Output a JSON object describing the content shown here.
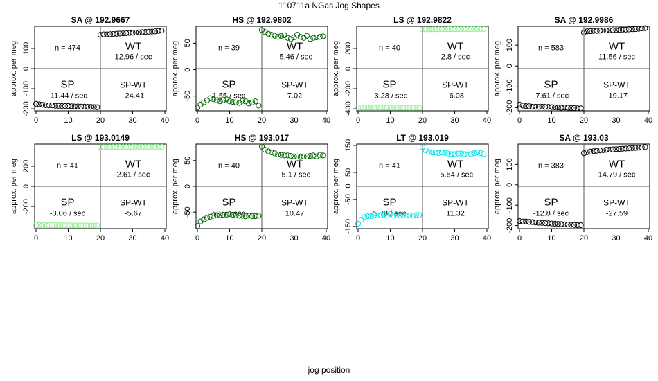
{
  "page": {
    "title": "110711a   NGas Jog Shapes",
    "xlabel": "jog position"
  },
  "chart_data": [
    {
      "type": "scatter",
      "title": "SA @ 192.9667",
      "ylabel": "approx. per meg",
      "xlim": [
        0,
        40
      ],
      "ylim": [
        -210,
        210
      ],
      "xticks": [
        0,
        10,
        20,
        30,
        40
      ],
      "yticks": [
        -200,
        -100,
        0,
        100
      ],
      "color": "#000000",
      "n_label": "n = 474",
      "wt_label": "WT",
      "wt_rate": "12.96 / sec",
      "sp_label": "SP",
      "sp_rate": "-11.44 / sec",
      "diff_label": "SP-WT",
      "diff_value": "-24.41",
      "sp_values": [
        -175,
        -177,
        -180,
        -182,
        -183,
        -183,
        -185,
        -185,
        -186,
        -186,
        -186,
        -187,
        -188,
        -188,
        -189,
        -189,
        -190,
        -190,
        -191,
        -192
      ],
      "wt_values": [
        168,
        170,
        170,
        171,
        172,
        173,
        174,
        175,
        176,
        177,
        178,
        179,
        180,
        181,
        182,
        183,
        184,
        185,
        187,
        189
      ]
    },
    {
      "type": "scatter",
      "title": "HS @ 192.9802",
      "ylabel": "approx. per meg",
      "xlim": [
        0,
        40
      ],
      "ylim": [
        -78,
        82
      ],
      "xticks": [
        0,
        10,
        20,
        30,
        40
      ],
      "yticks": [
        -50,
        0,
        50
      ],
      "color": "#006400",
      "n_label": "n = 39",
      "wt_label": "WT",
      "wt_rate": "-5.46 / sec",
      "sp_label": "SP",
      "sp_rate": "1.55 / sec",
      "diff_label": "SP-WT",
      "diff_value": "7.02",
      "sp_values": [
        -72,
        -66,
        -62,
        -58,
        -54,
        -56,
        -58,
        -60,
        -58,
        -56,
        -60,
        -61,
        -62,
        -63,
        -59,
        -60,
        -64,
        -62,
        -60,
        -68
      ],
      "wt_values": [
        75,
        71,
        68,
        66,
        64,
        62,
        64,
        65,
        60,
        58,
        61,
        66,
        62,
        60,
        64,
        58,
        60,
        61,
        62,
        63
      ]
    },
    {
      "type": "scatter",
      "title": "LS @ 192.9822",
      "ylabel": "approx. per meg",
      "xlim": [
        0,
        40
      ],
      "ylim": [
        -420,
        420
      ],
      "xticks": [
        0,
        10,
        20,
        30,
        40
      ],
      "yticks": [
        -400,
        -200,
        0,
        200
      ],
      "color": "#90ee90",
      "n_label": "n = 40",
      "wt_label": "WT",
      "wt_rate": "2.8 / sec",
      "sp_label": "SP",
      "sp_rate": "-3.28 / sec",
      "diff_label": "SP-WT",
      "diff_value": "-6.08",
      "sp_values": [
        -385,
        -385,
        -386,
        -386,
        -386,
        -387,
        -387,
        -387,
        -388,
        -388,
        -388,
        -388,
        -389,
        -389,
        -389,
        -389,
        -390,
        -390,
        -390,
        -390
      ],
      "wt_values": [
        390,
        390,
        390,
        391,
        391,
        391,
        391,
        391,
        392,
        392,
        392,
        392,
        392,
        392,
        393,
        393,
        393,
        393,
        393,
        393
      ]
    },
    {
      "type": "scatter",
      "title": "SA @ 192.9986",
      "ylabel": "approx. per meg",
      "xlim": [
        0,
        40
      ],
      "ylim": [
        -215,
        190
      ],
      "xticks": [
        0,
        10,
        20,
        30,
        40
      ],
      "yticks": [
        -200,
        -100,
        0,
        100
      ],
      "color": "#000000",
      "n_label": "n = 583",
      "wt_label": "WT",
      "wt_rate": "11.56 / sec",
      "sp_label": "SP",
      "sp_rate": "-7.61 / sec",
      "diff_label": "SP-WT",
      "diff_value": "-19.17",
      "sp_values": [
        -185,
        -190,
        -192,
        -193,
        -195,
        -195,
        -196,
        -195,
        -196,
        -196,
        -197,
        -198,
        -199,
        -200,
        -199,
        -200,
        -201,
        -202,
        -203,
        -203
      ],
      "wt_values": [
        160,
        166,
        167,
        168,
        168,
        169,
        170,
        170,
        171,
        172,
        172,
        173,
        174,
        174,
        175,
        176,
        177,
        178,
        180,
        181
      ]
    },
    {
      "type": "scatter",
      "title": "LS @ 193.0149",
      "ylabel": "approx. per meg",
      "xlim": [
        0,
        40
      ],
      "ylim": [
        -420,
        420
      ],
      "xticks": [
        0,
        10,
        20,
        30,
        40
      ],
      "yticks": [
        -200,
        0,
        200
      ],
      "color": "#90ee90",
      "n_label": "n = 41",
      "wt_label": "WT",
      "wt_rate": "2.61 / sec",
      "sp_label": "SP",
      "sp_rate": "-3.06 / sec",
      "diff_label": "SP-WT",
      "diff_value": "-5.67",
      "sp_values": [
        -384,
        -385,
        -385,
        -386,
        -386,
        -386,
        -387,
        -387,
        -387,
        -388,
        -388,
        -388,
        -388,
        -389,
        -389,
        -389,
        -389,
        -390,
        -390,
        -390
      ],
      "wt_values": [
        391,
        391,
        391,
        391,
        392,
        392,
        392,
        392,
        392,
        392,
        393,
        393,
        393,
        393,
        393,
        393,
        393,
        393,
        393,
        393
      ]
    },
    {
      "type": "scatter",
      "title": "HS @ 193.017",
      "ylabel": "approx. per meg",
      "xlim": [
        0,
        40
      ],
      "ylim": [
        -82,
        82
      ],
      "xticks": [
        0,
        10,
        20,
        30,
        40
      ],
      "yticks": [
        -50,
        0,
        50
      ],
      "color": "#006400",
      "n_label": "n = 40",
      "wt_label": "WT",
      "wt_rate": "-5.1 / sec",
      "sp_label": "SP",
      "sp_rate": "5.37 / sec",
      "diff_label": "SP-WT",
      "diff_value": "10.47",
      "sp_values": [
        -77,
        -68,
        -64,
        -61,
        -59,
        -57,
        -56,
        -56,
        -55,
        -55,
        -54,
        -55,
        -56,
        -57,
        -57,
        -58,
        -57,
        -58,
        -58,
        -57
      ],
      "wt_values": [
        77,
        71,
        68,
        66,
        64,
        62,
        61,
        60,
        60,
        59,
        58,
        58,
        57,
        58,
        58,
        59,
        60,
        58,
        61,
        60
      ]
    },
    {
      "type": "scatter",
      "title": "LT @ 193.019",
      "ylabel": "approx. per meg",
      "xlim": [
        0,
        40
      ],
      "ylim": [
        -158,
        155
      ],
      "xticks": [
        0,
        10,
        20,
        30,
        40
      ],
      "yticks": [
        -150,
        -50,
        0,
        50,
        150
      ],
      "color": "#00e5ee",
      "n_label": "n = 41",
      "wt_label": "WT",
      "wt_rate": "-5.54 / sec",
      "sp_label": "SP",
      "sp_rate": "5.78 / sec",
      "diff_label": "SP-WT",
      "diff_value": "11.32",
      "sp_values": [
        -140,
        -125,
        -115,
        -112,
        -112,
        -108,
        -110,
        -108,
        -106,
        -110,
        -104,
        -110,
        -108,
        -110,
        -108,
        -110,
        -109,
        -110,
        -108,
        -108
      ],
      "wt_values": [
        143,
        132,
        126,
        124,
        124,
        122,
        124,
        122,
        120,
        118,
        118,
        120,
        120,
        118,
        116,
        118,
        121,
        124,
        122,
        118
      ]
    },
    {
      "type": "scatter",
      "title": "SA @ 193.03",
      "ylabel": "approx. per meg",
      "xlim": [
        0,
        40
      ],
      "ylim": [
        -215,
        200
      ],
      "xticks": [
        0,
        10,
        20,
        30,
        40
      ],
      "yticks": [
        -200,
        -100,
        0,
        100
      ],
      "color": "#000000",
      "n_label": "n = 383",
      "wt_label": "WT",
      "wt_rate": "14.79 / sec",
      "sp_label": "SP",
      "sp_rate": "-12.8 / sec",
      "diff_label": "SP-WT",
      "diff_value": "-27.59",
      "sp_values": [
        -178,
        -180,
        -180,
        -182,
        -183,
        -185,
        -186,
        -187,
        -188,
        -189,
        -190,
        -191,
        -192,
        -193,
        -194,
        -195,
        -196,
        -197,
        -198,
        -198
      ],
      "wt_values": [
        155,
        160,
        163,
        165,
        167,
        169,
        170,
        172,
        173,
        174,
        175,
        176,
        177,
        178,
        179,
        180,
        181,
        182,
        183,
        185
      ]
    }
  ]
}
